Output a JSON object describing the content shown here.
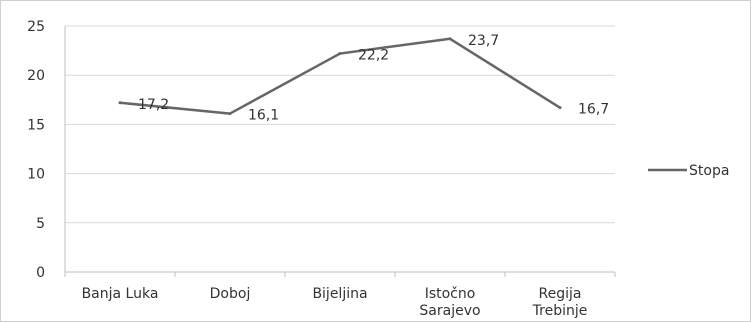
{
  "chart_data": {
    "type": "line",
    "categories": [
      [
        "Banja Luka"
      ],
      [
        "Doboj"
      ],
      [
        "Bijeljina"
      ],
      [
        "Istočno",
        "Sarajevo"
      ],
      [
        "Regija",
        "Trebinje"
      ]
    ],
    "series": [
      {
        "name": "Stopa",
        "values": [
          17.2,
          16.1,
          22.2,
          23.7,
          16.7
        ],
        "labels": [
          "17,2",
          "16,1",
          "22,2",
          "23,7",
          "16,7"
        ],
        "color": "#666666"
      }
    ],
    "yticks": [
      0,
      5,
      10,
      15,
      20,
      25
    ],
    "ylim": [
      0,
      25
    ],
    "grid": true,
    "legend": "right",
    "gridColor": "#d9d9d9",
    "axisColor": "#bfbfbf"
  }
}
